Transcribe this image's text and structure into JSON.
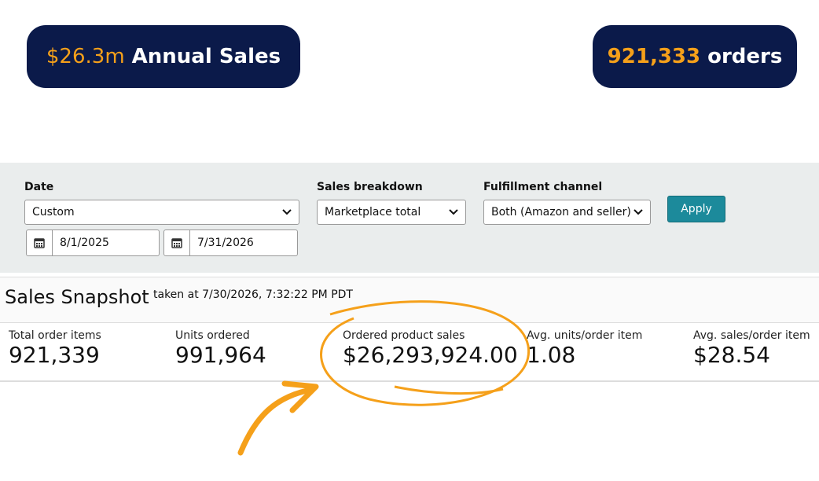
{
  "badges": [
    {
      "value": "$26.3m",
      "label": "Annual Sales"
    },
    {
      "value": "921,333",
      "label": "orders"
    }
  ],
  "filters": {
    "date": {
      "label": "Date",
      "selected": "Custom",
      "start": "8/1/2025",
      "end": "7/31/2026"
    },
    "sales_breakdown": {
      "label": "Sales breakdown",
      "selected": "Marketplace total"
    },
    "fulfillment_channel": {
      "label": "Fulfillment channel",
      "selected": "Both (Amazon and seller)"
    },
    "apply": "Apply"
  },
  "snapshot": {
    "title": "Sales Snapshot",
    "taken_at": "taken at 7/30/2026, 7:32:22 PM PDT",
    "metrics": [
      {
        "label": "Total order items",
        "value": "921,339"
      },
      {
        "label": "Units ordered",
        "value": "991,964"
      },
      {
        "label": "Ordered product sales",
        "value": "$26,293,924.00"
      },
      {
        "label": "Avg. units/order item",
        "value": "1.08"
      },
      {
        "label": "Avg. sales/order item",
        "value": "$28.54"
      }
    ]
  }
}
